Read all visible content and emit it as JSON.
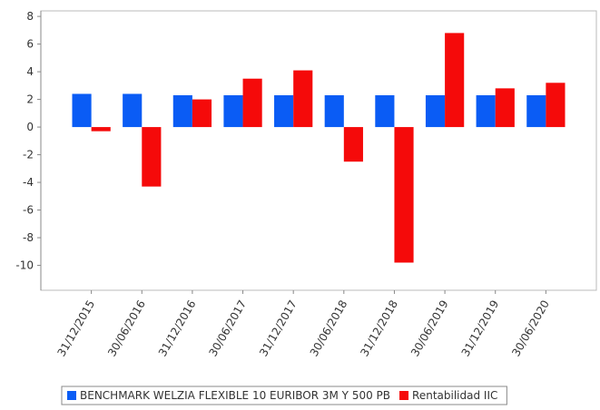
{
  "chart_data": {
    "type": "bar",
    "categories": [
      "31/12/2015",
      "30/06/2016",
      "31/12/2016",
      "30/06/2017",
      "31/12/2017",
      "30/06/2018",
      "31/12/2018",
      "30/06/2019",
      "31/12/2019",
      "30/06/2020"
    ],
    "series": [
      {
        "name": "BENCHMARK WELZIA FLEXIBLE 10 EURIBOR 3M Y 500 PB",
        "color": "#0a5cf5",
        "values": [
          2.4,
          2.4,
          2.3,
          2.3,
          2.3,
          2.3,
          2.3,
          2.3,
          2.3,
          2.3
        ]
      },
      {
        "name": "Rentabilidad IIC",
        "color": "#f50a0a",
        "values": [
          -0.3,
          -4.3,
          2.0,
          3.5,
          4.1,
          -2.5,
          -9.8,
          6.8,
          2.8,
          3.2
        ]
      }
    ],
    "ylim": [
      -11.8,
      8.4
    ],
    "yticks": [
      -10,
      -8,
      -6,
      -4,
      -2,
      0,
      2,
      4,
      6,
      8
    ],
    "grid": false
  }
}
